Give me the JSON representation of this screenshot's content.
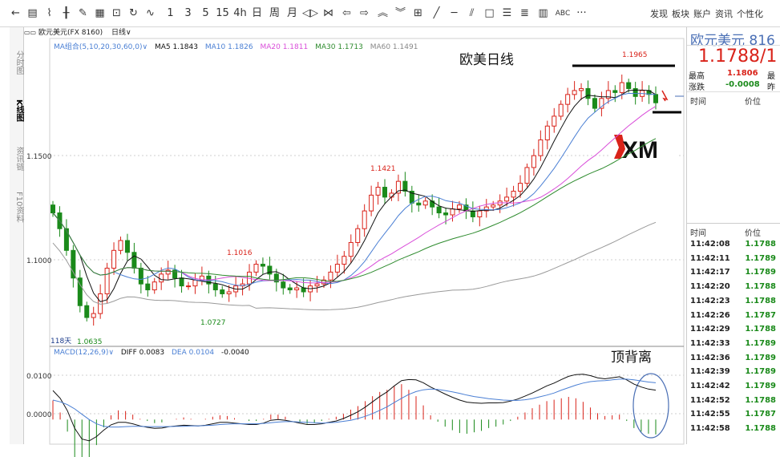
{
  "toolbar": {
    "icons": [
      "arrow-left-icon",
      "list-icon",
      "line-chart-icon",
      "candle-icon",
      "draw-icon",
      "bar-icon",
      "save-icon",
      "refresh-icon",
      "indicator-icon"
    ],
    "periods": [
      "1",
      "3",
      "5",
      "15",
      "4h",
      "日",
      "周",
      "月",
      "fast-back-icon",
      "fast-forward-icon",
      "prev-icon",
      "next-icon",
      "zoom-in-icon",
      "zoom-out-icon",
      "grid-icon",
      "line-tool-icon",
      "hline-tool-icon",
      "parallel-tool-icon",
      "rect-tool-icon",
      "fib-tool-icon",
      "channel-tool-icon",
      "volume-icon",
      "ABC",
      "more-icon"
    ],
    "period_labels": {
      "p1": "1",
      "p3": "3",
      "p5": "5",
      "p15": "15",
      "p4h": "4h",
      "day": "日",
      "week": "周",
      "month": "月",
      "abc": "ABC",
      "more": "···"
    },
    "menu": [
      "发现",
      "板块",
      "账户",
      "资讯",
      "个性化"
    ]
  },
  "sidebar": {
    "tabs": [
      "分时图",
      "K线图",
      "资讯链",
      "F10资料"
    ]
  },
  "instrument_bar": {
    "name": "欧元美元(FX 8160)",
    "period": "日线"
  },
  "ma_legend": {
    "group": "MA组合(5,10,20,30,60,0)",
    "ma5": "MA5 1.1843",
    "ma10": "MA10 1.1826",
    "ma20": "MA20 1.1811",
    "ma30": "MA30 1.1713",
    "ma60": "MA60 1.1491"
  },
  "colors": {
    "up": "#d9231a",
    "down": "#1a8a1a",
    "ma5": "#111111",
    "ma10": "#4a7fd4",
    "ma20": "#d94ed9",
    "ma30": "#2e8b2e",
    "ma60": "#9a9a9a",
    "macd_diff": "#111111",
    "macd_dea": "#4a7fd4",
    "annot_blue": "#4a6fb5"
  },
  "chart_data": [
    {
      "type": "candlestick",
      "title": "欧美日线",
      "y_ticks": [
        "1.1500",
        "1.1000"
      ],
      "ylim": [
        1.057,
        1.2065
      ],
      "grid": true,
      "bar_count_label": "118天",
      "annotations": {
        "high_label": "1.1965",
        "p1421": "1.1421",
        "p1016": "1.1016",
        "p0727": "1.0727",
        "p0635": "1.0635"
      },
      "watermark": "XM",
      "close_values": [
        1.123,
        1.115,
        1.104,
        1.09,
        1.076,
        1.07,
        1.072,
        1.082,
        1.095,
        1.104,
        1.109,
        1.103,
        1.095,
        1.087,
        1.084,
        1.088,
        1.092,
        1.094,
        1.09,
        1.086,
        1.086,
        1.089,
        1.091,
        1.087,
        1.084,
        1.082,
        1.083,
        1.086,
        1.087,
        1.093,
        1.097,
        1.096,
        1.092,
        1.088,
        1.085,
        1.084,
        1.085,
        1.083,
        1.086,
        1.087,
        1.089,
        1.093,
        1.097,
        1.101,
        1.108,
        1.115,
        1.124,
        1.132,
        1.136,
        1.131,
        1.133,
        1.139,
        1.134,
        1.128,
        1.127,
        1.129,
        1.126,
        1.123,
        1.122,
        1.125,
        1.127,
        1.124,
        1.121,
        1.124,
        1.126,
        1.127,
        1.129,
        1.131,
        1.134,
        1.138,
        1.146,
        1.152,
        1.16,
        1.167,
        1.172,
        1.178,
        1.183,
        1.185,
        1.186,
        1.181,
        1.176,
        1.181,
        1.185,
        1.184,
        1.189,
        1.186,
        1.182,
        1.185,
        1.183,
        1.1788
      ],
      "ma5_last": 1.1843,
      "ma10_last": 1.1826,
      "ma20_last": 1.1811,
      "ma30_last": 1.1713,
      "ma60_last": 1.1491
    },
    {
      "type": "macd",
      "legend": {
        "label": "MACD(12,26,9)",
        "diff": "DIFF 0.0083",
        "dea": "DEA 0.0104",
        "macd": "-0.0040"
      },
      "y_ticks": [
        "0.0100",
        "0.0000"
      ],
      "ylim": [
        -0.0065,
        0.0175
      ],
      "annotation": "顶背离",
      "diff": [
        0.0082,
        0.006,
        0.0025,
        -0.0025,
        -0.0055,
        -0.006,
        -0.0048,
        -0.003,
        -0.0015,
        -0.0008,
        -0.0008,
        -0.0012,
        -0.0018,
        -0.0022,
        -0.0025,
        -0.0024,
        -0.002,
        -0.0018,
        -0.0016,
        -0.0017,
        -0.0018,
        -0.0016,
        -0.0012,
        -0.0008,
        -0.0008,
        -0.001,
        -0.0012,
        -0.0014,
        -0.0014,
        -0.001,
        -0.0002,
        0.0,
        -0.0002,
        -0.0006,
        -0.001,
        -0.0014,
        -0.0014,
        -0.0012,
        -0.0008,
        -0.0004,
        0.0003,
        0.0012,
        0.0022,
        0.0035,
        0.005,
        0.0065,
        0.0078,
        0.0095,
        0.011,
        0.0113,
        0.0112,
        0.0104,
        0.0092,
        0.0082,
        0.0072,
        0.0063,
        0.0055,
        0.0049,
        0.0047,
        0.0046,
        0.0047,
        0.0047,
        0.0048,
        0.0052,
        0.0058,
        0.0066,
        0.0075,
        0.0085,
        0.0095,
        0.0103,
        0.0113,
        0.0122,
        0.0127,
        0.0128,
        0.0124,
        0.0118,
        0.0115,
        0.0118,
        0.0121,
        0.0112,
        0.01,
        0.0092,
        0.0086,
        0.0083
      ],
      "dea": [
        0.0055,
        0.005,
        0.0042,
        0.003,
        0.0015,
        0.0,
        -0.0012,
        -0.0019,
        -0.0021,
        -0.0021,
        -0.002,
        -0.0019,
        -0.0019,
        -0.002,
        -0.002,
        -0.002,
        -0.002,
        -0.0019,
        -0.0019,
        -0.0018,
        -0.0018,
        -0.0017,
        -0.0016,
        -0.0014,
        -0.0013,
        -0.0012,
        -0.0012,
        -0.0012,
        -0.0012,
        -0.0011,
        -0.0009,
        -0.0007,
        -0.0006,
        -0.0006,
        -0.0007,
        -0.0008,
        -0.0009,
        -0.001,
        -0.0009,
        -0.0008,
        -0.0005,
        -0.0002,
        0.0003,
        0.0009,
        0.0017,
        0.0026,
        0.0036,
        0.0048,
        0.006,
        0.0071,
        0.0079,
        0.0084,
        0.0086,
        0.0085,
        0.0082,
        0.0078,
        0.0074,
        0.0069,
        0.0065,
        0.0062,
        0.0059,
        0.0057,
        0.0055,
        0.0054,
        0.0054,
        0.0056,
        0.0059,
        0.0064,
        0.0069,
        0.0075,
        0.0083,
        0.009,
        0.0097,
        0.0103,
        0.0107,
        0.0109,
        0.011,
        0.0112,
        0.0114,
        0.0114,
        0.0112,
        0.0109,
        0.0106,
        0.0104
      ]
    }
  ],
  "quote_panel": {
    "name": "欧元美元 816",
    "price": "1.1788/1",
    "high_label": "最高",
    "high_value": "1.1806",
    "high_label_2": "最",
    "change_label": "涨跌",
    "change_value": "-0.0008",
    "change_label_2": "昨",
    "time_header": "时间",
    "price_header": "价位",
    "ticks_header_time": "时间",
    "ticks_header_price": "价位",
    "ticks": [
      {
        "time": "11:42:08",
        "price": "1.1788"
      },
      {
        "time": "11:42:11",
        "price": "1.1789"
      },
      {
        "time": "11:42:17",
        "price": "1.1789"
      },
      {
        "time": "11:42:20",
        "price": "1.1788"
      },
      {
        "time": "11:42:23",
        "price": "1.1788"
      },
      {
        "time": "11:42:26",
        "price": "1.1787"
      },
      {
        "time": "11:42:29",
        "price": "1.1788"
      },
      {
        "time": "11:42:33",
        "price": "1.1789"
      },
      {
        "time": "11:42:36",
        "price": "1.1789"
      },
      {
        "time": "11:42:39",
        "price": "1.1789"
      },
      {
        "time": "11:42:42",
        "price": "1.1789"
      },
      {
        "time": "11:42:52",
        "price": "1.1788"
      },
      {
        "time": "11:42:55",
        "price": "1.1787"
      },
      {
        "time": "11:42:58",
        "price": "1.1788"
      }
    ]
  }
}
